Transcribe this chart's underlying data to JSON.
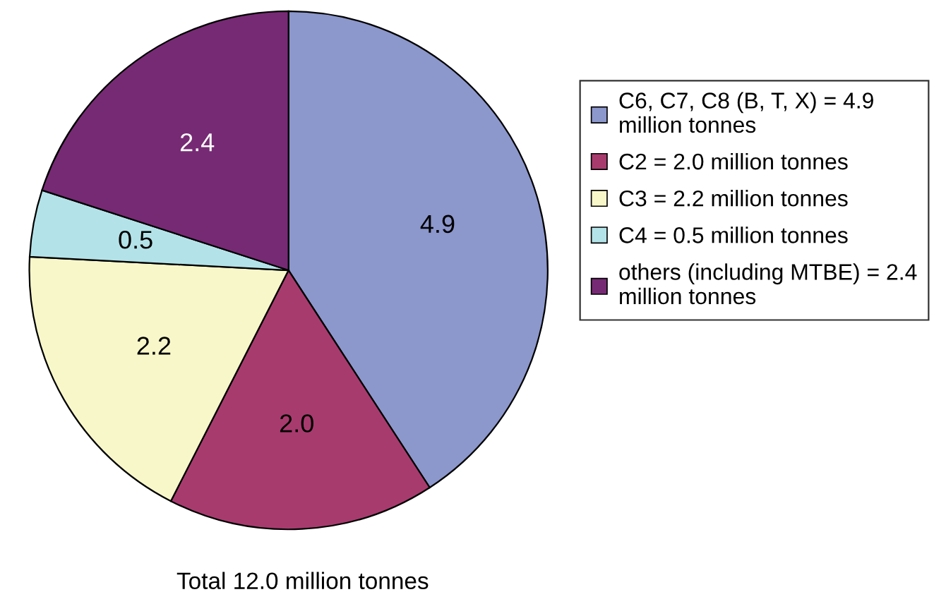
{
  "chart_data": {
    "type": "pie",
    "categories": [
      "C6, C7, C8 (B, T, X) = 4.9 million tonnes",
      "C2 = 2.0 million tonnes",
      "C3 = 2.2 million tonnes",
      "C4 = 0.5 million tonnes",
      "others (including MTBE) = 2.4 million tonnes"
    ],
    "values": [
      4.9,
      2.0,
      2.2,
      0.5,
      2.4
    ],
    "colors": [
      "#8c97cc",
      "#a83b6e",
      "#f8f7c9",
      "#b3e3e8",
      "#772a74"
    ],
    "value_labels": [
      "4.9",
      "2.0",
      "2.2",
      "0.5",
      "2.4"
    ],
    "legend": "right",
    "annotations": [
      "Total 12.0 million tonnes"
    ]
  }
}
